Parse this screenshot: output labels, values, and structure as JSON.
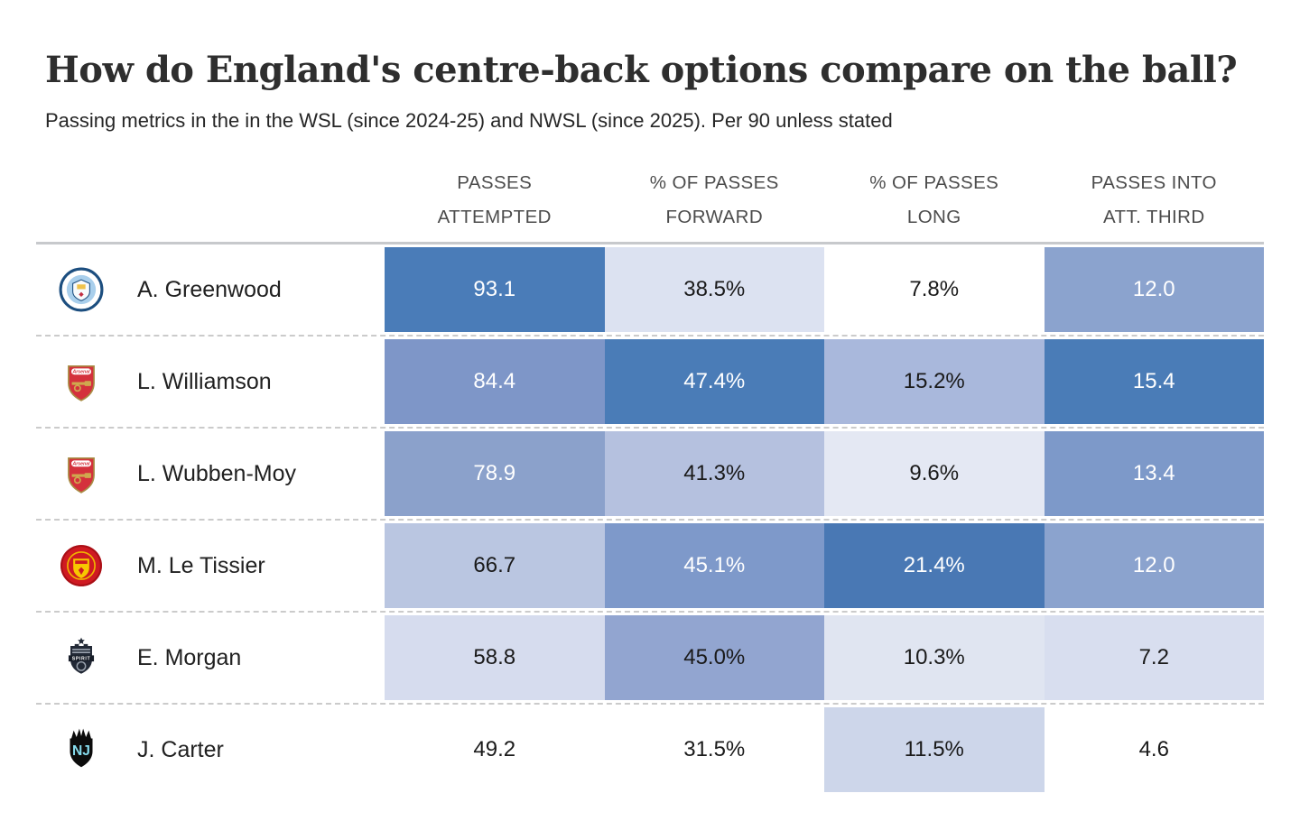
{
  "header": {
    "title": "How do England's centre-back options compare on the ball?",
    "subtitle": "Passing metrics in the in the WSL (since 2024-25) and NWSL (since 2025). Per 90 unless stated"
  },
  "table": {
    "columns": [
      {
        "line1": "PASSES",
        "line2": "ATTEMPTED"
      },
      {
        "line1": "% OF PASSES",
        "line2": "FORWARD"
      },
      {
        "line1": "% OF PASSES",
        "line2": "LONG"
      },
      {
        "line1": "PASSES INTO",
        "line2": "ATT. THIRD"
      }
    ],
    "rows": [
      {
        "player": "A. Greenwood",
        "team": "manchester-city",
        "cells": [
          {
            "value": "93.1",
            "bg": "#4A7CB8",
            "fg": "#FFFFFF"
          },
          {
            "value": "38.5%",
            "bg": "#DCE2F1",
            "fg": "#1A1A1A"
          },
          {
            "value": "7.8%",
            "bg": "",
            "fg": "#1A1A1A"
          },
          {
            "value": "12.0",
            "bg": "#8BA3CE",
            "fg": "#FFFFFF"
          }
        ]
      },
      {
        "player": "L. Williamson",
        "team": "arsenal",
        "cells": [
          {
            "value": "84.4",
            "bg": "#7E96C8",
            "fg": "#FFFFFF"
          },
          {
            "value": "47.4%",
            "bg": "#4A7CB7",
            "fg": "#FFFFFF"
          },
          {
            "value": "15.2%",
            "bg": "#A9B8DC",
            "fg": "#1A1A1A"
          },
          {
            "value": "15.4",
            "bg": "#4A7CB7",
            "fg": "#FFFFFF"
          }
        ]
      },
      {
        "player": "L. Wubben-Moy",
        "team": "arsenal",
        "cells": [
          {
            "value": "78.9",
            "bg": "#8BA1CB",
            "fg": "#FFFFFF"
          },
          {
            "value": "41.3%",
            "bg": "#B5C1DF",
            "fg": "#1A1A1A"
          },
          {
            "value": "9.6%",
            "bg": "#E4E8F3",
            "fg": "#1A1A1A"
          },
          {
            "value": "13.4",
            "bg": "#7D99C9",
            "fg": "#FFFFFF"
          }
        ]
      },
      {
        "player": "M. Le Tissier",
        "team": "manchester-united",
        "cells": [
          {
            "value": "66.7",
            "bg": "#BAC6E1",
            "fg": "#1A1A1A"
          },
          {
            "value": "45.1%",
            "bg": "#7E99CA",
            "fg": "#FFFFFF"
          },
          {
            "value": "21.4%",
            "bg": "#4978B4",
            "fg": "#FFFFFF"
          },
          {
            "value": "12.0",
            "bg": "#8BA3CE",
            "fg": "#FFFFFF"
          }
        ]
      },
      {
        "player": "E. Morgan",
        "team": "washington-spirit",
        "cells": [
          {
            "value": "58.8",
            "bg": "#D6DCEE",
            "fg": "#1A1A1A"
          },
          {
            "value": "45.0%",
            "bg": "#92A5D0",
            "fg": "#1A1A1A"
          },
          {
            "value": "10.3%",
            "bg": "#E0E5F1",
            "fg": "#1A1A1A"
          },
          {
            "value": "7.2",
            "bg": "#D8DEEF",
            "fg": "#1A1A1A"
          }
        ]
      },
      {
        "player": "J. Carter",
        "team": "gotham-fc",
        "cells": [
          {
            "value": "49.2",
            "bg": "",
            "fg": "#1A1A1A"
          },
          {
            "value": "31.5%",
            "bg": "",
            "fg": "#1A1A1A"
          },
          {
            "value": "11.5%",
            "bg": "#CDD6EA",
            "fg": "#1A1A1A"
          },
          {
            "value": "4.6",
            "bg": "",
            "fg": "#1A1A1A"
          }
        ]
      }
    ]
  },
  "chart_data": {
    "type": "heatmap",
    "title": "How do England's centre-back options compare on the ball?",
    "subtitle": "Passing metrics in the in the WSL (since 2024-25) and NWSL (since 2025). Per 90 unless stated",
    "categories": [
      "A. Greenwood",
      "L. Williamson",
      "L. Wubben-Moy",
      "M. Le Tissier",
      "E. Morgan",
      "J. Carter"
    ],
    "teams": [
      "Manchester City",
      "Arsenal",
      "Arsenal",
      "Manchester United",
      "Washington Spirit",
      "NJ/NY Gotham FC"
    ],
    "columns": [
      "Passes attempted",
      "% of passes forward",
      "% of passes long",
      "Passes into att. third"
    ],
    "series": [
      {
        "name": "Passes attempted",
        "values": [
          93.1,
          84.4,
          78.9,
          66.7,
          58.8,
          49.2
        ]
      },
      {
        "name": "% of passes forward",
        "values": [
          38.5,
          47.4,
          41.3,
          45.1,
          45.0,
          31.5
        ]
      },
      {
        "name": "% of passes long",
        "values": [
          7.8,
          15.2,
          9.6,
          21.4,
          10.3,
          11.5
        ]
      },
      {
        "name": "Passes into att. third",
        "values": [
          12.0,
          15.4,
          13.4,
          12.0,
          7.2,
          4.6
        ]
      }
    ],
    "palette": {
      "high": "#4A7CB8",
      "low": "#FFFFFF"
    },
    "legend": "none",
    "grid": "dashed-row-separators"
  }
}
